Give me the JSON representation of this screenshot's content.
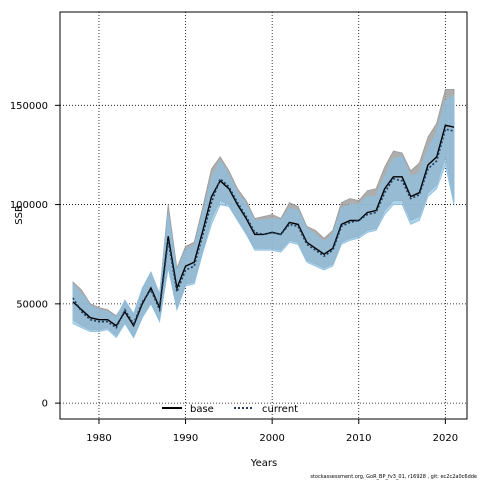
{
  "chart_data": {
    "type": "line",
    "title": "",
    "xlabel": "Years",
    "ylabel": "SSB",
    "xlim": [
      1975.5,
      2022.5
    ],
    "ylim": [
      -8000,
      197000
    ],
    "xticks": [
      1980,
      1990,
      2000,
      2010,
      2020
    ],
    "xtick_labels": [
      "1980",
      "1990",
      "2000",
      "2010",
      "2020"
    ],
    "yticks": [
      0,
      50000,
      100000,
      150000
    ],
    "ytick_labels": [
      "0",
      "50000",
      "100000",
      "150000"
    ],
    "grid": true,
    "legend_position": "bottom-left",
    "footer": "stockassessment.org, GoR_BP_fv3_01, r16928 , git: ec2c2a0c6dde",
    "x": [
      1977,
      1978,
      1979,
      1980,
      1981,
      1982,
      1983,
      1984,
      1985,
      1986,
      1987,
      1988,
      1989,
      1990,
      1991,
      1992,
      1993,
      1994,
      1995,
      1996,
      1997,
      1998,
      1999,
      2000,
      2001,
      2002,
      2003,
      2004,
      2005,
      2006,
      2007,
      2008,
      2009,
      2010,
      2011,
      2012,
      2013,
      2014,
      2015,
      2016,
      2017,
      2018,
      2019,
      2020,
      2021
    ],
    "series": [
      {
        "name": "base",
        "color": "#000000",
        "band_color": "#9a9a9a",
        "line": "solid",
        "values": [
          51000,
          47000,
          43000,
          42000,
          42000,
          39000,
          46000,
          39000,
          50000,
          58000,
          48000,
          84000,
          58000,
          69000,
          71000,
          87000,
          104000,
          112000,
          108000,
          100000,
          93000,
          85000,
          85000,
          86000,
          85000,
          91000,
          90000,
          81000,
          78000,
          75000,
          78000,
          90000,
          92000,
          92000,
          96000,
          97000,
          108000,
          114000,
          114000,
          104000,
          106000,
          120000,
          124000,
          140000,
          139000
        ],
        "lower": [
          42000,
          39000,
          37000,
          37000,
          38000,
          34000,
          41000,
          33000,
          43000,
          51000,
          42000,
          69000,
          48000,
          60000,
          61000,
          77000,
          93000,
          102000,
          100000,
          93000,
          86000,
          78000,
          78000,
          78000,
          77000,
          82000,
          81000,
          72000,
          70000,
          68000,
          70000,
          81000,
          83000,
          84000,
          87000,
          88000,
          97000,
          102000,
          102000,
          92000,
          94000,
          106000,
          110000,
          124000,
          102000
        ],
        "upper": [
          61000,
          57000,
          50000,
          48000,
          47000,
          44000,
          51000,
          45000,
          57000,
          66000,
          55000,
          100000,
          68000,
          79000,
          81000,
          99000,
          118000,
          124000,
          117000,
          108000,
          102000,
          93000,
          94000,
          95000,
          93000,
          101000,
          99000,
          89000,
          87000,
          83000,
          87000,
          101000,
          103000,
          102000,
          107000,
          108000,
          119000,
          127000,
          126000,
          117000,
          121000,
          134000,
          141000,
          158000,
          158000
        ]
      },
      {
        "name": "current",
        "color": "#1f3c5a",
        "band_color": "#8cc0e2",
        "line": "dotted",
        "values": [
          53000,
          46000,
          42000,
          41000,
          41000,
          38000,
          47000,
          40000,
          51000,
          57000,
          47000,
          82000,
          56000,
          67000,
          69000,
          85000,
          101000,
          113000,
          109000,
          101000,
          94000,
          86000,
          85000,
          86000,
          85000,
          90000,
          89000,
          80000,
          77000,
          74000,
          77000,
          89000,
          91000,
          92000,
          95000,
          96000,
          106000,
          113000,
          112000,
          103000,
          105000,
          118000,
          122000,
          138000,
          137000
        ],
        "lower": [
          40000,
          38000,
          36000,
          36000,
          37000,
          33000,
          40000,
          33000,
          43000,
          50000,
          41000,
          68000,
          47000,
          59000,
          60000,
          76000,
          90000,
          100000,
          99000,
          92000,
          85000,
          77000,
          77000,
          77000,
          76000,
          81000,
          80000,
          71000,
          69000,
          67000,
          69000,
          80000,
          82000,
          83000,
          86000,
          87000,
          95000,
          100000,
          100000,
          90000,
          92000,
          104000,
          108000,
          120000,
          100000
        ],
        "upper": [
          60000,
          55000,
          49000,
          47000,
          46000,
          43000,
          52000,
          45000,
          58000,
          66000,
          55000,
          96000,
          66000,
          77000,
          79000,
          96000,
          113000,
          122000,
          115000,
          106000,
          100000,
          92000,
          92000,
          93000,
          92000,
          98000,
          97000,
          88000,
          85000,
          81000,
          85000,
          98000,
          100000,
          100000,
          104000,
          104000,
          114000,
          123000,
          124000,
          114000,
          116000,
          128000,
          136000,
          152000,
          155000
        ]
      }
    ]
  }
}
